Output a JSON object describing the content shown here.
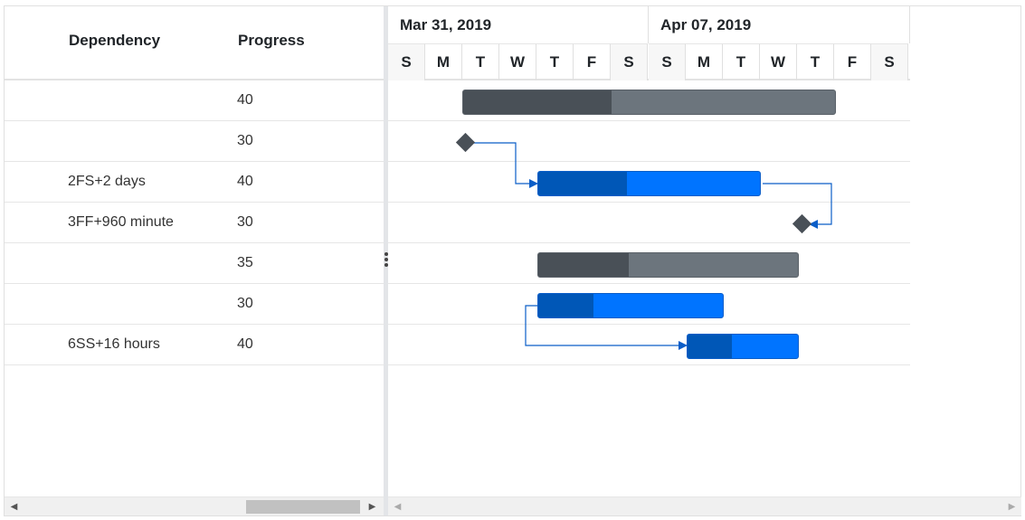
{
  "grid": {
    "columns": [
      "Dependency",
      "Progress"
    ],
    "rows": [
      {
        "dependency": "",
        "progress": "40"
      },
      {
        "dependency": "",
        "progress": "30"
      },
      {
        "dependency": "2FS+2 days",
        "progress": "40"
      },
      {
        "dependency": "3FF+960 minute",
        "progress": "30"
      },
      {
        "dependency": "",
        "progress": "35"
      },
      {
        "dependency": "",
        "progress": "30"
      },
      {
        "dependency": "6SS+16 hours",
        "progress": "40"
      }
    ]
  },
  "timeline": {
    "weeks": [
      "Mar 31, 2019",
      "Apr 07, 2019"
    ],
    "days": [
      "S",
      "M",
      "T",
      "W",
      "T",
      "F",
      "S",
      "S",
      "M",
      "T",
      "W",
      "T",
      "F",
      "S"
    ]
  },
  "colors": {
    "parent_bar": "#6c757d",
    "parent_progress": "#495057",
    "child_bar": "#0074ff",
    "child_progress": "#0057b7",
    "connector": "#0b5ec8",
    "milestone": "#495057"
  },
  "icons": {
    "scroll_left": "◀",
    "scroll_right": "▶"
  }
}
